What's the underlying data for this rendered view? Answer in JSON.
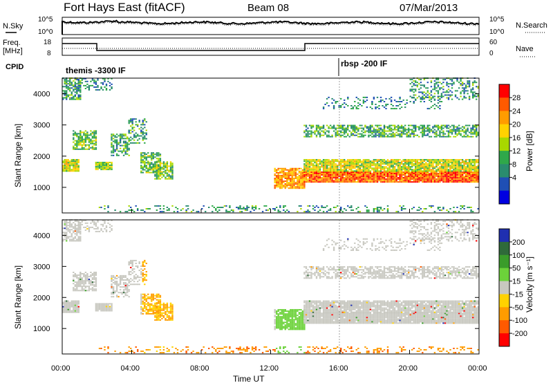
{
  "header": {
    "title": "Fort Hays East (fitACF)",
    "beam": "Beam 08",
    "date": "07/Mar/2013"
  },
  "top_panels": {
    "nsky_label": "N.Sky",
    "nsearch_label": "N.Search",
    "noise_ticks_left": [
      "10^5",
      "10^0"
    ],
    "noise_ticks_right": [
      "10^5",
      "10^0"
    ],
    "freq_label_1": "Freq.",
    "freq_label_2": "[MHz]",
    "freq_ticks": [
      "18",
      "8"
    ],
    "nave_label": "Nave",
    "nave_ticks": [
      "60",
      "0"
    ],
    "cpid_label": "CPID",
    "cpid_1": "themis -3300 IF",
    "cpid_2": "rbsp -200 IF"
  },
  "power_colorbar": {
    "label": "Power [dB]",
    "ticks": [
      "28",
      "24",
      "20",
      "16",
      "12",
      "8",
      "4"
    ],
    "colors": [
      "#ff0000",
      "#ff5a00",
      "#ff9c00",
      "#ffd200",
      "#a8d800",
      "#2fa84a",
      "#2a8c6e",
      "#1f4fb4",
      "#0000e0"
    ]
  },
  "velocity_colorbar": {
    "label": "Velocity [m s⁻¹]",
    "ticks": [
      "200",
      "100",
      "50",
      "15",
      "-15",
      "-50",
      "-100",
      "-200"
    ],
    "colors": [
      "#1f2fb0",
      "#2f6a3a",
      "#3a9c2a",
      "#6cd23a",
      "#c8c8c0",
      "#ffd200",
      "#ff9c00",
      "#ff5a00",
      "#ff0000"
    ]
  },
  "chart_data": [
    {
      "type": "heatmap",
      "name": "power",
      "ylabel": "Slant Range [km]",
      "xlabel": "Time UT",
      "x_ticks": [
        "00:00",
        "04:00",
        "08:00",
        "12:00",
        "16:00",
        "20:00",
        "00:00"
      ],
      "y_ticks": [
        1000,
        2000,
        3000,
        4000
      ],
      "xlim_hours": [
        0,
        24
      ],
      "ylim_km": [
        180,
        4500
      ]
    },
    {
      "type": "heatmap",
      "name": "velocity",
      "ylabel": "Slant Range [km]",
      "xlabel": "Time UT",
      "x_ticks": [
        "00:00",
        "04:00",
        "08:00",
        "12:00",
        "16:00",
        "20:00",
        "00:00"
      ],
      "y_ticks": [
        1000,
        2000,
        3000,
        4000
      ],
      "xlim_hours": [
        0,
        24
      ],
      "ylim_km": [
        180,
        4500
      ]
    }
  ],
  "axis": {
    "ylabel": "Slant Range [km]",
    "xlabel": "Time UT",
    "x_ticks": [
      "00:00",
      "04:00",
      "08:00",
      "12:00",
      "16:00",
      "20:00",
      "00:00"
    ],
    "y_ticks": [
      "4000",
      "3000",
      "2000",
      "1000"
    ]
  }
}
